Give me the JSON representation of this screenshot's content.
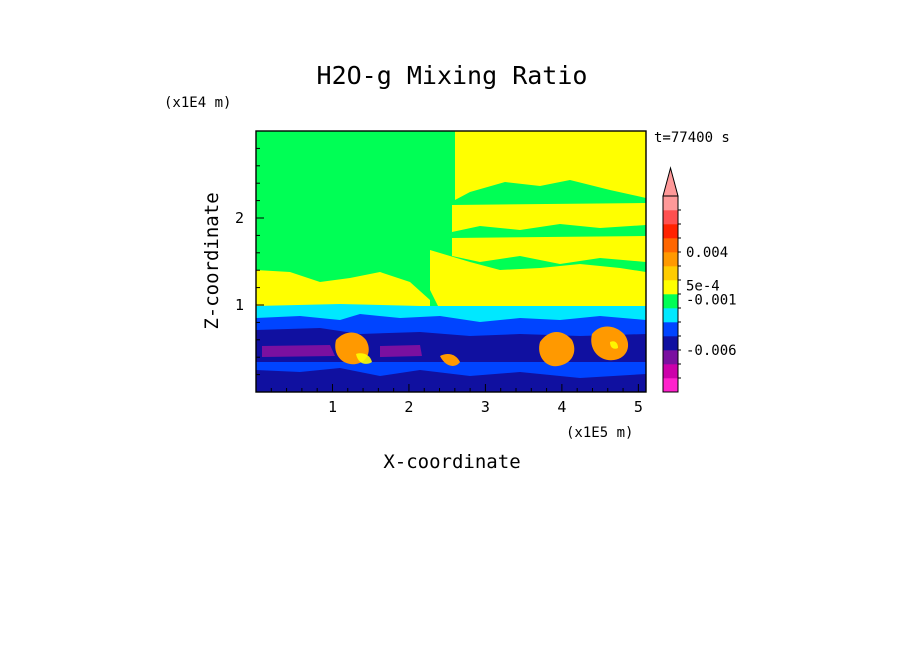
{
  "chart_data": {
    "type": "heatmap",
    "title": "H2O-g Mixing Ratio",
    "xlabel": "X-coordinate",
    "ylabel": "Z-coordinate",
    "x_unit": "(x1E5 m)",
    "y_unit": "(x1E4 m)",
    "time_label": "t=77400 s",
    "xlim": [
      0,
      5.1
    ],
    "ylim": [
      0,
      3.0
    ],
    "x_ticks": [
      "1",
      "2",
      "3",
      "4",
      "5"
    ],
    "y_ticks": [
      "1",
      "2"
    ],
    "colorbar": {
      "colors": [
        "#ff22cc",
        "#cc00aa",
        "#7a10a0",
        "#1010a0",
        "#0044ff",
        "#00e8ff",
        "#00ff55",
        "#ffff00",
        "#ffcc00",
        "#ff9900",
        "#ff6600",
        "#ff2200",
        "#ff5050",
        "#ff9999"
      ],
      "labels": [
        "0.004",
        "5e-4",
        "-0.001",
        "-0.006"
      ],
      "extend": "max"
    },
    "regions": [
      {
        "name": "background",
        "color": "#00ff55"
      },
      {
        "name": "upper-yellow-band",
        "color": "#ffff00"
      },
      {
        "name": "cyan-layer",
        "color": "#00e8ff"
      },
      {
        "name": "blue-boundary-layer",
        "color": "#0044ff"
      },
      {
        "name": "navy-layer",
        "color": "#1010a0"
      },
      {
        "name": "purple-band",
        "color": "#7a10a0"
      },
      {
        "name": "orange-blobs",
        "color": "#ff9900"
      }
    ]
  }
}
